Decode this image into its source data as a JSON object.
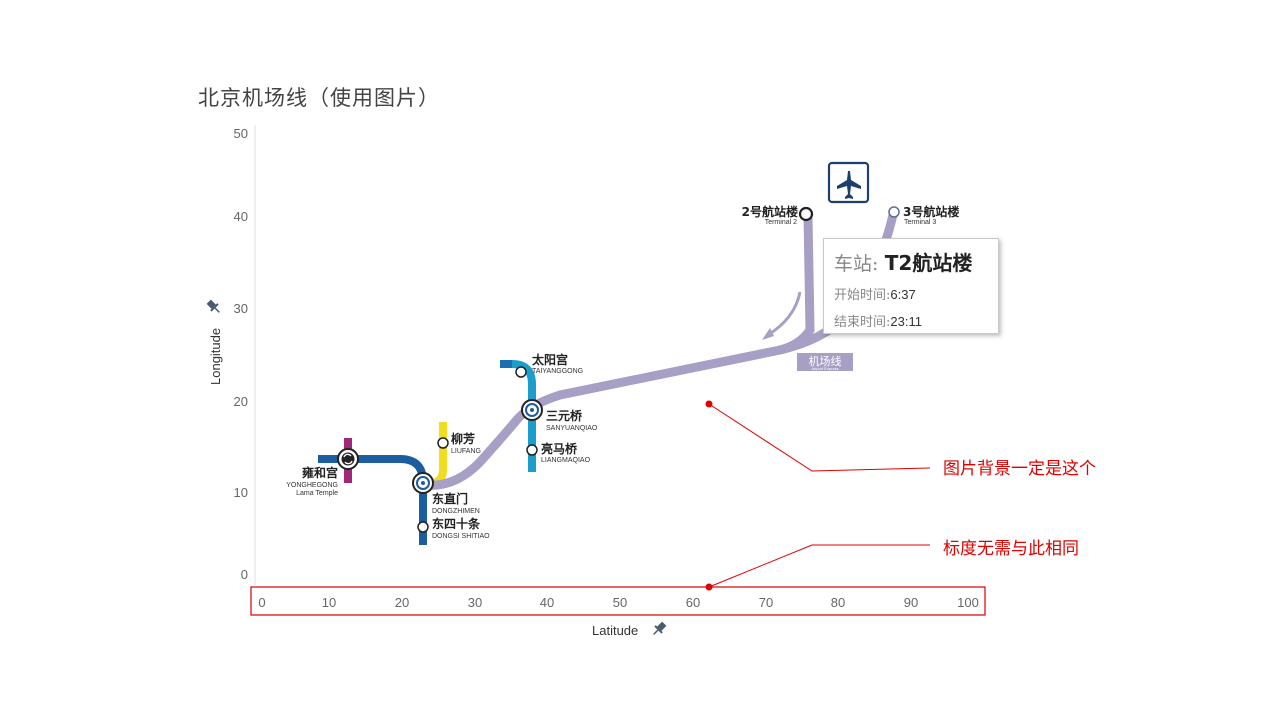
{
  "title": "北京机场线（使用图片）",
  "axes": {
    "y_title": "Longitude",
    "x_title": "Latitude",
    "y_ticks": [
      "50",
      "40",
      "30",
      "20",
      "10",
      "0"
    ],
    "x_ticks": [
      "0",
      "10",
      "20",
      "30",
      "40",
      "50",
      "60",
      "70",
      "80",
      "90",
      "100"
    ]
  },
  "stations": {
    "yonghegong": {
      "cn": "雍和宫",
      "en1": "YONGHEGONG",
      "en2": "Lama Temple"
    },
    "liufang": {
      "cn": "柳芳",
      "en": "LIUFANG"
    },
    "dongzhimen": {
      "cn": "东直门",
      "en": "DONGZHIMEN"
    },
    "dongsishitiao": {
      "cn": "东四十条",
      "en": "DONGSI SHITIAO"
    },
    "taiyanggong": {
      "cn": "太阳宫",
      "en": "TAIYANGGONG"
    },
    "sanyuanqiao": {
      "cn": "三元桥",
      "en": "SANYUANQIAO"
    },
    "liangmaqiao": {
      "cn": "亮马桥",
      "en": "LIANGMAQIAO"
    },
    "terminal2": {
      "cn": "2号航站楼",
      "en": "Terminal 2"
    },
    "terminal3": {
      "cn": "3号航站楼",
      "en": "Terminal 3"
    }
  },
  "line_label": {
    "cn": "机场线",
    "en": "Airport Express"
  },
  "tooltip": {
    "station_key": "车站:",
    "station_value": "T2航站楼",
    "start_key": "开始时间:",
    "start_value": "6:37",
    "end_key": "结束时间:",
    "end_value": "23:11"
  },
  "annotations": {
    "background_note": "图片背景一定是这个",
    "scale_note": "标度无需与此相同"
  },
  "icons": {
    "airport": "airplane-icon",
    "pin": "pin-icon"
  },
  "colors": {
    "airport_line": "#a79fc4",
    "line2": "#1b5d9e",
    "line10": "#1b9ec9",
    "line13": "#f1dc1f",
    "line5": "#a0287a",
    "line10_start": "#1b9ec9",
    "annotation": "#e00000"
  }
}
